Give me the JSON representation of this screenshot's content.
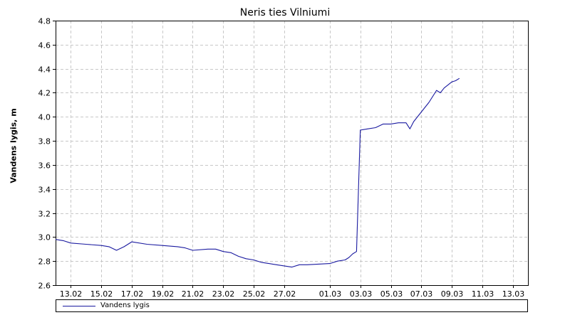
{
  "chart_data": {
    "type": "line",
    "title": "Neris ties Vilniumi",
    "xlabel": "",
    "ylabel": "Vandens lygis, m",
    "ylim": [
      2.6,
      4.8
    ],
    "yticks": [
      "2.6",
      "2.8",
      "3.0",
      "3.2",
      "3.4",
      "3.6",
      "3.8",
      "4.0",
      "4.2",
      "4.4",
      "4.6",
      "4.8"
    ],
    "xlim": [
      "02-12",
      "03-14"
    ],
    "xticks": [
      "13.02",
      "15.02",
      "17.02",
      "19.02",
      "21.02",
      "23.02",
      "25.02",
      "27.02",
      "01.03",
      "03.03",
      "05.03",
      "07.03",
      "09.03",
      "11.03",
      "13.03"
    ],
    "grid": true,
    "legend": "bottom",
    "series": [
      {
        "name": "Vandens lygis",
        "color": "#1a1aa0",
        "x": [
          "02-12",
          "02-12 12:00",
          "02-13",
          "02-14",
          "02-15",
          "02-15 12:00",
          "02-16",
          "02-16 12:00",
          "02-17",
          "02-18",
          "02-19",
          "02-20",
          "02-20 12:00",
          "02-21",
          "02-22",
          "02-22 12:00",
          "02-23",
          "02-23 12:00",
          "02-24",
          "02-24 12:00",
          "02-25",
          "02-25 12:00",
          "02-26",
          "02-26 12:00",
          "02-27",
          "02-27 12:00",
          "02-28",
          "02-28 12:00",
          "03-01",
          "03-01 12:00",
          "03-02",
          "03-02 06:00",
          "03-02 12:00",
          "03-02 18:00",
          "03-03",
          "03-03 12:00",
          "03-04",
          "03-04 12:00",
          "03-05",
          "03-05 12:00",
          "03-06",
          "03-06 06:00",
          "03-06 12:00",
          "03-07",
          "03-07 12:00",
          "03-08",
          "03-08 06:00",
          "03-08 12:00",
          "03-09",
          "03-09 06:00",
          "03-09 12:00"
        ],
        "values": [
          2.98,
          2.97,
          2.95,
          2.94,
          2.93,
          2.92,
          2.89,
          2.92,
          2.96,
          2.94,
          2.93,
          2.92,
          2.91,
          2.89,
          2.9,
          2.9,
          2.88,
          2.87,
          2.84,
          2.82,
          2.81,
          2.79,
          2.78,
          2.77,
          2.76,
          2.75,
          2.77,
          2.77,
          2.78,
          2.8,
          2.81,
          2.83,
          2.86,
          2.88,
          3.89,
          3.9,
          3.91,
          3.94,
          3.94,
          3.95,
          3.95,
          3.9,
          3.96,
          4.04,
          4.12,
          4.22,
          4.2,
          4.24,
          4.29,
          4.3,
          4.32
        ]
      }
    ]
  }
}
